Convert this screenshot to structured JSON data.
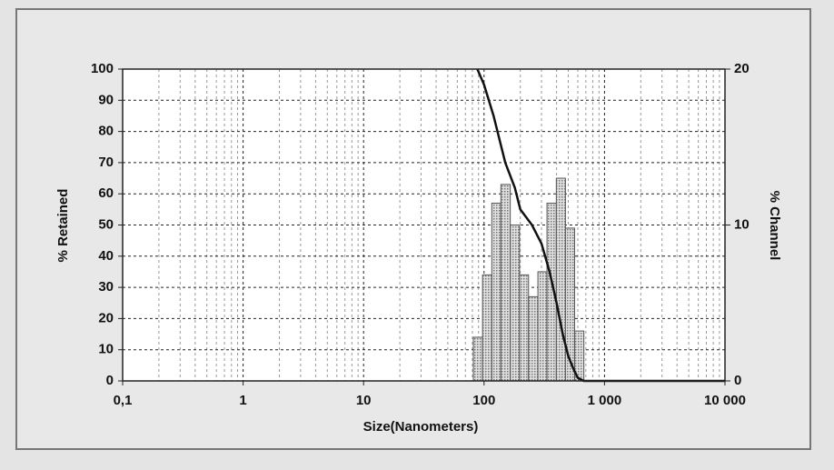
{
  "chart_data": {
    "type": "histogram",
    "xlabel": "Size(Nanometers)",
    "ylabel": "% Retained",
    "y2label": "% Channel",
    "xscale": "log",
    "xlim": [
      0.1,
      10000
    ],
    "xticks": [
      {
        "value": 0.1,
        "label": "0,1"
      },
      1,
      10,
      100,
      {
        "value": 1000,
        "label": "1 000"
      },
      {
        "value": 10000,
        "label": "10 000"
      }
    ],
    "ylim": [
      0,
      100
    ],
    "yticks": [
      0,
      10,
      20,
      30,
      40,
      50,
      60,
      70,
      80,
      90,
      100
    ],
    "y2lim": [
      0,
      20
    ],
    "y2ticks": [
      0,
      10,
      20
    ],
    "grid": true,
    "color": "#b4b4b4",
    "bins": [
      81.5,
      97.2,
      116,
      138,
      165,
      197,
      234,
      280,
      333,
      398,
      474,
      565,
      674
    ],
    "values": [
      2.8,
      6.8,
      11.4,
      12.6,
      10,
      6.8,
      5.4,
      7,
      11.4,
      13,
      9.8,
      3.2
    ],
    "axis": "y2",
    "line": {
      "type": "line",
      "color": "#111111",
      "x": [
        88,
        100,
        120,
        150,
        180,
        200,
        250,
        300,
        350,
        400,
        450,
        500,
        550,
        600,
        674,
        1000,
        10000
      ],
      "values": [
        100,
        95,
        85,
        70,
        62,
        55,
        50,
        44,
        35,
        25,
        15,
        8,
        4,
        1,
        0,
        0,
        0
      ]
    }
  }
}
